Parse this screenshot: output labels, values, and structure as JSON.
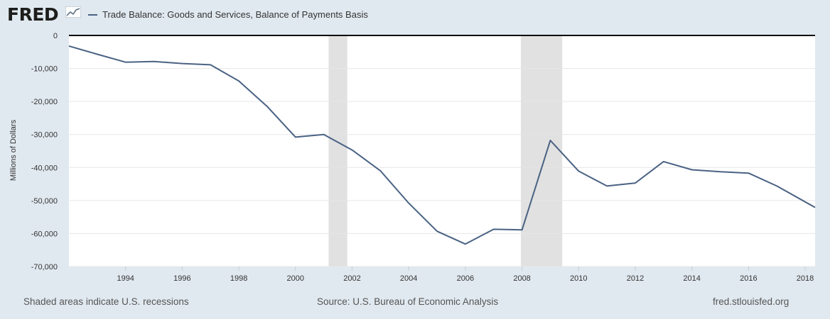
{
  "header": {
    "logo_text": "FRED",
    "series_title": "Trade Balance: Goods and Services, Balance of Payments Basis"
  },
  "footer": {
    "recession_note": "Shaded areas indicate U.S. recessions",
    "source": "Source: U.S. Bureau of Economic Analysis",
    "site": "fred.stlouisfed.org"
  },
  "colors": {
    "line": "#4a6283",
    "recession": "#e1e1e1",
    "background": "#e1e9f0",
    "plot_background": "#ffffff"
  },
  "chart_data": {
    "type": "line",
    "title": "",
    "ylabel": "Millions of Dollars",
    "xlabel": "",
    "xlim": [
      1992,
      2018.35
    ],
    "ylim": [
      -70000,
      0
    ],
    "x_ticks": [
      1994,
      1996,
      1998,
      2000,
      2002,
      2004,
      2006,
      2008,
      2010,
      2012,
      2014,
      2016,
      2018
    ],
    "y_ticks": [
      0,
      -10000,
      -20000,
      -30000,
      -40000,
      -50000,
      -60000,
      -70000
    ],
    "grid": true,
    "legend": "top-left",
    "recessions": [
      [
        2001.17,
        2001.83
      ],
      [
        2007.96,
        2009.42
      ]
    ],
    "series": [
      {
        "name": "Trade Balance: Goods and Services, Balance of Payments Basis",
        "x": [
          1992,
          1993,
          1994,
          1995,
          1996,
          1997,
          1998,
          1999,
          2000,
          2001,
          2002,
          2003,
          2004,
          2005,
          2006,
          2007,
          2008,
          2009,
          2010,
          2011,
          2012,
          2013,
          2014,
          2015,
          2016,
          2017,
          2018.35
        ],
        "y": [
          -3200,
          -5700,
          -8100,
          -7900,
          -8500,
          -8900,
          -13800,
          -21500,
          -30800,
          -30000,
          -34700,
          -41000,
          -50800,
          -59300,
          -63200,
          -58700,
          -58900,
          -31800,
          -41100,
          -45600,
          -44700,
          -38200,
          -40700,
          -41300,
          -41700,
          -45600,
          -52100
        ]
      }
    ]
  }
}
